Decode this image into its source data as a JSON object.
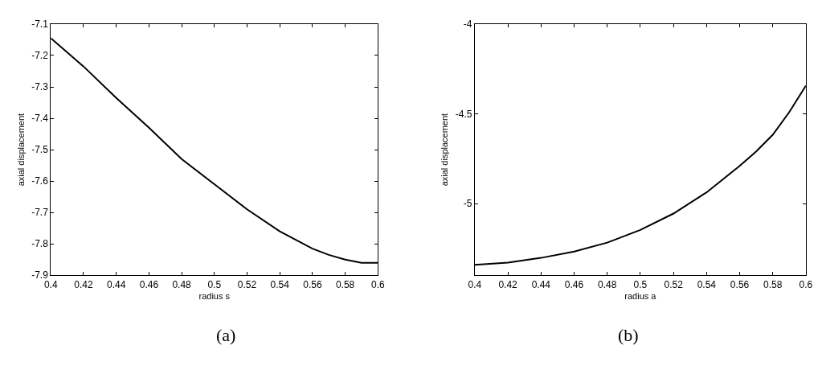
{
  "chart_data": [
    {
      "type": "line",
      "xlabel": "radius s",
      "ylabel": "axial displacement",
      "annotations": [
        "(a)"
      ],
      "xlim": [
        0.4,
        0.6
      ],
      "ylim": [
        -7.9,
        -7.1
      ],
      "xticks": [
        0.4,
        0.42,
        0.44,
        0.46,
        0.48,
        0.5,
        0.52,
        0.54,
        0.56,
        0.58,
        0.6
      ],
      "yticks": [
        -7.9,
        -7.8,
        -7.7,
        -7.6,
        -7.5,
        -7.4,
        -7.3,
        -7.2,
        -7.1
      ],
      "x": [
        0.4,
        0.42,
        0.44,
        0.46,
        0.48,
        0.5,
        0.52,
        0.54,
        0.56,
        0.57,
        0.58,
        0.59,
        0.6
      ],
      "series": [
        {
          "color": "#000000",
          "values": [
            -7.145,
            -7.235,
            -7.335,
            -7.43,
            -7.53,
            -7.61,
            -7.69,
            -7.76,
            -7.815,
            -7.835,
            -7.85,
            -7.86,
            -7.86
          ]
        }
      ]
    },
    {
      "type": "line",
      "xlabel": "radius a",
      "ylabel": "axial displacement",
      "annotations": [
        "(b)"
      ],
      "xlim": [
        0.4,
        0.6
      ],
      "ylim": [
        -5.4,
        -4
      ],
      "xticks": [
        0.4,
        0.42,
        0.44,
        0.46,
        0.48,
        0.5,
        0.52,
        0.54,
        0.56,
        0.58,
        0.6
      ],
      "yticks": [
        -5,
        -4.5,
        -4
      ],
      "x": [
        0.4,
        0.42,
        0.44,
        0.46,
        0.48,
        0.5,
        0.52,
        0.54,
        0.56,
        0.57,
        0.58,
        0.59,
        0.6
      ],
      "series": [
        {
          "color": "#000000",
          "values": [
            -5.342,
            -5.329,
            -5.303,
            -5.268,
            -5.218,
            -5.147,
            -5.056,
            -4.938,
            -4.79,
            -4.71,
            -4.617,
            -4.49,
            -4.343
          ]
        }
      ]
    }
  ]
}
